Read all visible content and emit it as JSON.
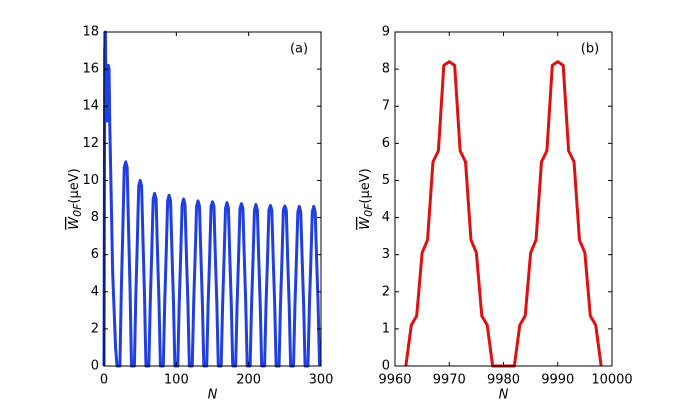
{
  "chart_data": [
    {
      "type": "line",
      "panel_label": "(a)",
      "xlabel": "N",
      "ylabel": {
        "symbol": "W",
        "subscript": "0F",
        "unit": "(μeV)"
      },
      "xlim": [
        0,
        300
      ],
      "xticks": [
        0,
        100,
        200,
        300
      ],
      "ylim": [
        0,
        18
      ],
      "yticks": [
        0,
        2,
        4,
        6,
        8,
        10,
        12,
        14,
        16,
        18
      ],
      "series": [
        {
          "color": "#1f3fe0",
          "x": [
            0,
            1,
            2,
            3,
            4,
            6,
            7,
            8,
            10,
            12,
            14,
            16,
            18,
            22,
            24,
            26,
            28,
            30,
            32,
            34,
            36,
            38,
            42,
            44,
            46,
            48,
            50,
            52,
            54,
            56,
            58,
            62,
            64,
            66,
            68,
            70,
            72,
            74,
            76,
            78,
            82,
            84,
            86,
            88,
            90,
            92,
            94,
            96,
            98,
            102,
            104,
            106,
            108,
            110,
            112,
            114,
            116,
            118,
            122,
            124,
            126,
            128,
            130,
            132,
            134,
            136,
            138,
            142,
            144,
            146,
            148,
            150,
            152,
            154,
            156,
            158,
            162,
            164,
            166,
            168,
            170,
            172,
            174,
            176,
            178,
            182,
            184,
            186,
            188,
            190,
            192,
            194,
            196,
            198,
            202,
            204,
            206,
            208,
            210,
            212,
            214,
            216,
            218,
            222,
            224,
            226,
            228,
            230,
            232,
            234,
            236,
            238,
            242,
            244,
            246,
            248,
            250,
            252,
            254,
            256,
            258,
            262,
            264,
            266,
            268,
            270,
            272,
            274,
            276,
            278,
            282,
            284,
            286,
            288,
            290,
            292,
            294,
            296,
            298
          ],
          "values": [
            0,
            17,
            18,
            13.5,
            13.2,
            16.2,
            16,
            13,
            9,
            5,
            3,
            1,
            0,
            0,
            4.2,
            7.3,
            10.7,
            11,
            10.7,
            7.3,
            4.2,
            0,
            0,
            3.8,
            6.6,
            9.7,
            10,
            9.7,
            6.6,
            3.8,
            0,
            0,
            3.5,
            6.1,
            9.0,
            9.3,
            9.0,
            6.1,
            3.5,
            0,
            0,
            3.5,
            6.1,
            8.9,
            9.2,
            8.9,
            6.1,
            3.5,
            0,
            0,
            3.4,
            5.9,
            8.7,
            9,
            8.7,
            5.9,
            3.4,
            0,
            0,
            3.4,
            5.9,
            8.6,
            8.9,
            8.6,
            5.9,
            3.4,
            0,
            0,
            3.4,
            5.8,
            8.6,
            8.85,
            8.6,
            5.8,
            3.4,
            0,
            0,
            3.3,
            5.8,
            8.5,
            8.8,
            8.5,
            5.8,
            3.3,
            0,
            0,
            3.3,
            5.8,
            8.5,
            8.75,
            8.5,
            5.8,
            3.3,
            0,
            0,
            3.3,
            5.7,
            8.4,
            8.7,
            8.4,
            5.7,
            3.3,
            0,
            0,
            3.3,
            5.7,
            8.4,
            8.65,
            8.4,
            5.7,
            3.3,
            0,
            0,
            3.3,
            5.7,
            8.4,
            8.62,
            8.4,
            5.7,
            3.3,
            0,
            0,
            3.3,
            5.7,
            8.3,
            8.6,
            8.3,
            5.7,
            3.3,
            0,
            0,
            3.3,
            5.7,
            8.3,
            8.6,
            8.3,
            5.7,
            3.3,
            0
          ]
        }
      ]
    },
    {
      "type": "line",
      "panel_label": "(b)",
      "xlabel": "N",
      "ylabel": {
        "symbol": "W",
        "subscript": "0F",
        "unit": "(μeV)"
      },
      "xlim": [
        9960,
        10000
      ],
      "xticks": [
        9960,
        9970,
        9980,
        9990,
        10000
      ],
      "ylim": [
        0,
        9
      ],
      "yticks": [
        0,
        1,
        2,
        3,
        4,
        5,
        6,
        7,
        8,
        9
      ],
      "series": [
        {
          "color": "#e01010",
          "x": [
            9962,
            9963,
            9964,
            9965,
            9966,
            9967,
            9968,
            9969,
            9970,
            9971,
            9972,
            9973,
            9974,
            9975,
            9976,
            9977,
            9978,
            9979,
            9980,
            9981,
            9982,
            9983,
            9984,
            9985,
            9986,
            9987,
            9988,
            9989,
            9990,
            9991,
            9992,
            9993,
            9994,
            9995,
            9996,
            9997,
            9998
          ],
          "values": [
            0,
            1.1,
            1.35,
            3.05,
            3.4,
            5.5,
            5.8,
            8.1,
            8.2,
            8.1,
            5.8,
            5.5,
            3.4,
            3.05,
            1.35,
            1.1,
            0,
            0,
            0,
            0,
            0,
            1.1,
            1.35,
            3.05,
            3.4,
            5.5,
            5.8,
            8.1,
            8.2,
            8.1,
            5.8,
            5.5,
            3.4,
            3.05,
            1.35,
            1.1,
            0
          ]
        }
      ]
    }
  ]
}
